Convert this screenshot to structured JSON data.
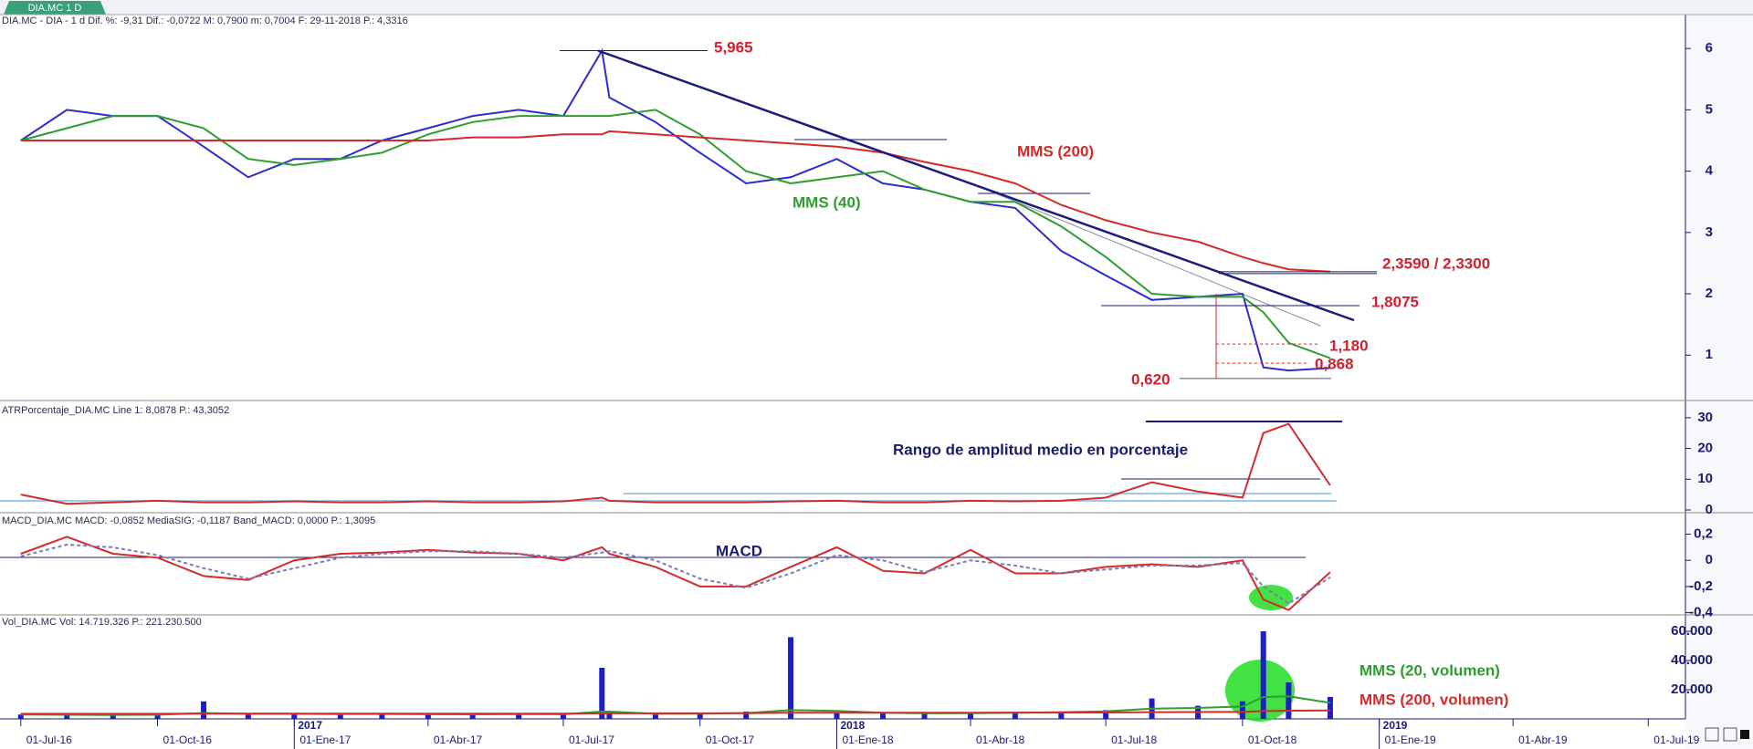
{
  "chart_data": {
    "type": "line",
    "tab": "DIA.MC 1 D",
    "x": [
      "2016-07-01",
      "2016-08-01",
      "2016-09-01",
      "2016-10-01",
      "2016-11-01",
      "2016-12-01",
      "2017-01-01",
      "2017-02-01",
      "2017-03-01",
      "2017-04-01",
      "2017-05-01",
      "2017-06-01",
      "2017-07-01",
      "2017-07-27",
      "2017-08-01",
      "2017-09-01",
      "2017-10-01",
      "2017-11-01",
      "2017-12-01",
      "2018-01-01",
      "2018-02-01",
      "2018-03-01",
      "2018-04-01",
      "2018-05-01",
      "2018-06-01",
      "2018-07-01",
      "2018-08-01",
      "2018-09-01",
      "2018-10-01",
      "2018-10-15",
      "2018-11-01",
      "2018-11-29"
    ],
    "xlim": [
      "2016-06-17",
      "2019-07-26"
    ],
    "xticks": [
      {
        "value": "2016-07-01",
        "label": "01-Jul-16"
      },
      {
        "value": "2016-10-01",
        "label": "01-Oct-16"
      },
      {
        "value": "2017-01-01",
        "label": "01-Ene-17"
      },
      {
        "value": "2017-04-01",
        "label": "01-Abr-17"
      },
      {
        "value": "2017-07-01",
        "label": "01-Jul-17"
      },
      {
        "value": "2017-10-01",
        "label": "01-Oct-17"
      },
      {
        "value": "2018-01-01",
        "label": "01-Ene-18"
      },
      {
        "value": "2018-04-01",
        "label": "01-Abr-18"
      },
      {
        "value": "2018-07-01",
        "label": "01-Jul-18"
      },
      {
        "value": "2018-10-01",
        "label": "01-Oct-18"
      },
      {
        "value": "2019-01-01",
        "label": "01-Ene-19"
      },
      {
        "value": "2019-04-01",
        "label": "01-Abr-19"
      },
      {
        "value": "2019-07-01",
        "label": "01-Jul-19"
      }
    ],
    "year_labels": [
      {
        "value": "2017-01-01",
        "label": "2017"
      },
      {
        "value": "2018-01-01",
        "label": "2018"
      },
      {
        "value": "2019-01-01",
        "label": "2019"
      }
    ],
    "panels": [
      {
        "header": "DIA.MC - DIA - 1 d Dif. %: -9,31 Dif.: -0,0722 M: 0,7900 m: 0,7004 F: 29-11-2018 P.: 4,3316",
        "ylim": [
          0.29,
          6.27
        ],
        "yticks": [
          1,
          2,
          3,
          4,
          5,
          6
        ],
        "series": [
          {
            "color": "#2b2bd0",
            "values": [
              4.5,
              5.0,
              4.9,
              4.9,
              4.4,
              3.9,
              4.2,
              4.2,
              4.5,
              4.7,
              4.9,
              5.0,
              4.9,
              5.965,
              5.2,
              4.8,
              4.3,
              3.8,
              3.9,
              4.2,
              3.8,
              3.7,
              3.5,
              3.4,
              2.7,
              2.3,
              1.9,
              1.95,
              2.0,
              0.8,
              0.75,
              0.79
            ]
          },
          {
            "name": "MMS (40)",
            "color": "#2e9e2e",
            "values": [
              4.5,
              4.7,
              4.9,
              4.9,
              4.7,
              4.2,
              4.1,
              4.2,
              4.3,
              4.6,
              4.8,
              4.9,
              4.9,
              4.9,
              4.9,
              5.0,
              4.6,
              4.0,
              3.8,
              3.9,
              4.0,
              3.7,
              3.5,
              3.5,
              3.1,
              2.6,
              2.0,
              1.95,
              1.95,
              1.7,
              1.2,
              0.95
            ]
          },
          {
            "name": "MMS (200)",
            "color": "#d42a2a",
            "values": [
              4.5,
              4.5,
              4.5,
              4.5,
              4.5,
              4.5,
              4.5,
              4.5,
              4.5,
              4.5,
              4.55,
              4.55,
              4.6,
              4.6,
              4.65,
              4.6,
              4.55,
              4.5,
              4.45,
              4.4,
              4.3,
              4.15,
              4.0,
              3.8,
              3.45,
              3.2,
              3.0,
              2.85,
              2.6,
              2.5,
              2.4,
              2.36
            ]
          }
        ],
        "levels": [
          {
            "label": "5,965",
            "value": 5.965
          },
          {
            "label": "2,3590 / 2,3300",
            "values": [
              2.359,
              2.33
            ]
          },
          {
            "label": "1,8075",
            "value": 1.8075
          },
          {
            "label": "1,180",
            "value": 1.18
          },
          {
            "label": "0,868",
            "value": 0.868
          },
          {
            "label": "0,620",
            "value": 0.62
          }
        ]
      },
      {
        "header": "ATRPorcentaje_DIA.MC Line 1: 8,0878 P.: 43,3052",
        "ylim": [
          -0.6,
          35
        ],
        "yticks": [
          0,
          10,
          20,
          30
        ],
        "annotation": "Rango de amplitud medio en porcentaje",
        "series": [
          {
            "color": "#d42a2a",
            "values": [
              5,
              2,
              2.5,
              3,
              2.5,
              2.5,
              2.8,
              2.5,
              2.5,
              2.8,
              2.5,
              2.5,
              2.8,
              4,
              3,
              2.5,
              2.5,
              2.5,
              2.8,
              3,
              2.5,
              2.5,
              3,
              2.8,
              3,
              4,
              9,
              6,
              4,
              25,
              28,
              8
            ]
          }
        ]
      },
      {
        "header": "MACD_DIA.MC MACD: -0,0852 MediaSIG: -0,1187 Band_MACD: 0,0000 P.: 1,3095",
        "ylim": [
          -0.41,
          0.35
        ],
        "yticks": [
          {
            "value": 0.2,
            "label": "0,2"
          },
          0,
          {
            "value": -0.2,
            "label": "-0,2"
          },
          {
            "value": -0.4,
            "label": "-0,4"
          }
        ],
        "annotation": "MACD",
        "series": [
          {
            "color": "#d42a2a",
            "values": [
              0.05,
              0.18,
              0.05,
              0.02,
              -0.12,
              -0.15,
              0.0,
              0.05,
              0.06,
              0.08,
              0.06,
              0.05,
              0.0,
              0.1,
              0.05,
              -0.05,
              -0.2,
              -0.2,
              -0.05,
              0.1,
              -0.08,
              -0.1,
              0.08,
              -0.1,
              -0.1,
              -0.05,
              -0.03,
              -0.05,
              0.0,
              -0.3,
              -0.38,
              -0.09
            ]
          },
          {
            "color": "#7a7ab8",
            "dashed": true,
            "values": [
              0.03,
              0.12,
              0.1,
              0.04,
              -0.06,
              -0.14,
              -0.06,
              0.02,
              0.05,
              0.07,
              0.07,
              0.05,
              0.02,
              0.06,
              0.07,
              0.0,
              -0.14,
              -0.21,
              -0.1,
              0.04,
              0.0,
              -0.09,
              0.0,
              -0.04,
              -0.1,
              -0.07,
              -0.04,
              -0.04,
              -0.02,
              -0.2,
              -0.33,
              -0.13
            ]
          }
        ]
      },
      {
        "header": "Vol_DIA.MC Vol: 14.719.326 P.: 221.230.500",
        "ylim": [
          0,
          70000
        ],
        "yticks": [
          {
            "value": 20000,
            "label": "20.000"
          },
          {
            "value": 40000,
            "label": "40.000"
          },
          {
            "value": 60000,
            "label": "60.000"
          }
        ],
        "series": [
          {
            "type": "bar",
            "color": "#1e1ec8",
            "values": [
              3000,
              2500,
              2500,
              3000,
              12000,
              3000,
              4000,
              3000,
              3500,
              3000,
              3000,
              3500,
              3000,
              35000,
              4000,
              3000,
              4000,
              5000,
              56000,
              4500,
              4000,
              3500,
              4000,
              4500,
              5000,
              6000,
              14000,
              9000,
              12000,
              60000,
              25000,
              15000
            ]
          },
          {
            "name": "MMS (20, volumen)",
            "color": "#2e9e2e",
            "values": [
              3000,
              2800,
              2700,
              2800,
              4000,
              3500,
              3500,
              3300,
              3400,
              3200,
              3100,
              3300,
              3200,
              5000,
              5000,
              3500,
              3600,
              4000,
              6000,
              5500,
              4200,
              3800,
              3900,
              4200,
              4600,
              5200,
              7000,
              7500,
              8500,
              15000,
              15500,
              11000
            ]
          },
          {
            "name": "MMS (200, volumen)",
            "color": "#d42a2a",
            "values": [
              3500,
              3500,
              3500,
              3500,
              3600,
              3600,
              3600,
              3600,
              3600,
              3600,
              3600,
              3600,
              3600,
              3800,
              3800,
              3800,
              3800,
              3900,
              4200,
              4200,
              4200,
              4200,
              4200,
              4300,
              4300,
              4400,
              4600,
              4700,
              4800,
              5300,
              5600,
              5800
            ]
          }
        ]
      }
    ]
  }
}
